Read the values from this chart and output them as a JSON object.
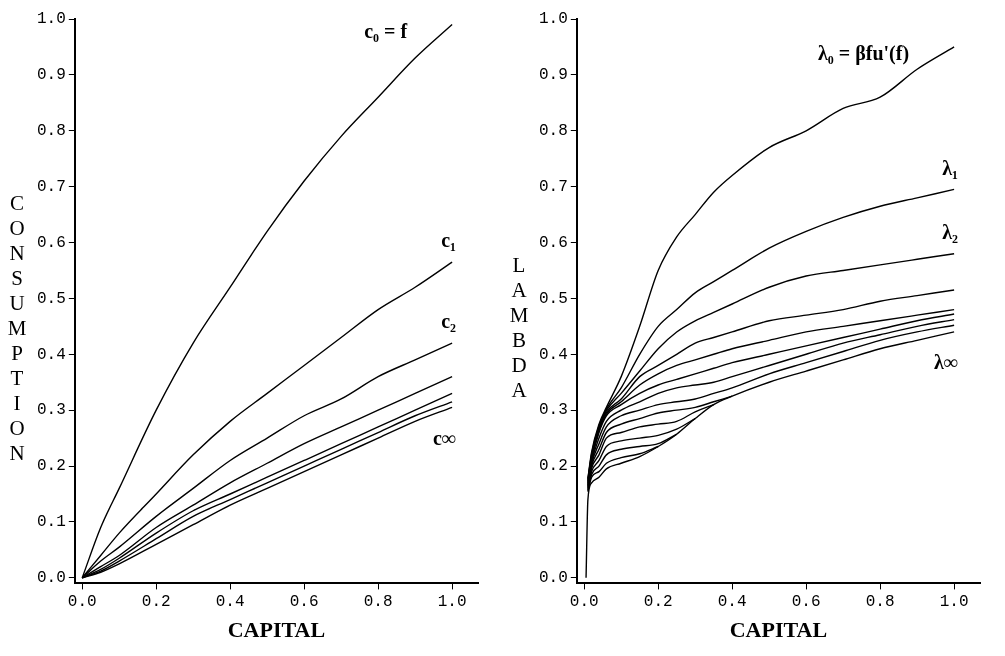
{
  "chart_data": [
    {
      "type": "line",
      "xlabel": "CAPITAL",
      "ylabel": "CONSUMPTION",
      "xlim": [
        -0.02,
        1.07
      ],
      "ylim": [
        -0.01,
        1.0
      ],
      "xticks": [
        {
          "value": 0,
          "label": "0.0"
        },
        {
          "value": 0.2,
          "label": "0.2"
        },
        {
          "value": 0.4,
          "label": "0.4"
        },
        {
          "value": 0.6,
          "label": "0.6"
        },
        {
          "value": 0.8,
          "label": "0.8"
        },
        {
          "value": 1.0,
          "label": "1.0"
        }
      ],
      "yticks": [
        {
          "value": 0,
          "label": "0.0"
        },
        {
          "value": 0.1,
          "label": "0.1"
        },
        {
          "value": 0.2,
          "label": "0.2"
        },
        {
          "value": 0.3,
          "label": "0.3"
        },
        {
          "value": 0.4,
          "label": "0.4"
        },
        {
          "value": 0.5,
          "label": "0.5"
        },
        {
          "value": 0.6,
          "label": "0.6"
        },
        {
          "value": 0.7,
          "label": "0.7"
        },
        {
          "value": 0.8,
          "label": "0.8"
        },
        {
          "value": 0.9,
          "label": "0.9"
        },
        {
          "value": 1.0,
          "label": "1.0"
        }
      ],
      "x": [
        0,
        0.05,
        0.1,
        0.2,
        0.3,
        0.4,
        0.5,
        0.6,
        0.7,
        0.8,
        0.9,
        1.0
      ],
      "series": [
        {
          "name": "c₀ = f",
          "color": "#000000",
          "values": [
            0,
            0.09,
            0.16,
            0.3,
            0.42,
            0.52,
            0.62,
            0.71,
            0.79,
            0.86,
            0.93,
            0.99
          ]
        },
        {
          "name": "c₁",
          "color": "#000000",
          "values": [
            0,
            0.04,
            0.08,
            0.15,
            0.22,
            0.28,
            0.33,
            0.38,
            0.43,
            0.48,
            0.52,
            0.565
          ]
        },
        {
          "name": "c₂",
          "color": "#000000",
          "values": [
            0,
            0.03,
            0.055,
            0.11,
            0.16,
            0.21,
            0.25,
            0.29,
            0.32,
            0.36,
            0.39,
            0.42
          ]
        },
        {
          "color": "#000000",
          "values": [
            0,
            0.02,
            0.04,
            0.09,
            0.13,
            0.17,
            0.205,
            0.24,
            0.27,
            0.3,
            0.33,
            0.36
          ]
        },
        {
          "color": "#000000",
          "values": [
            0,
            0.015,
            0.035,
            0.08,
            0.12,
            0.15,
            0.18,
            0.21,
            0.24,
            0.27,
            0.3,
            0.33
          ]
        },
        {
          "color": "#000000",
          "values": [
            0,
            0.012,
            0.03,
            0.07,
            0.11,
            0.14,
            0.17,
            0.2,
            0.23,
            0.26,
            0.29,
            0.315
          ]
        },
        {
          "name": "c∞",
          "color": "#000000",
          "values": [
            0,
            0.01,
            0.025,
            0.06,
            0.095,
            0.13,
            0.16,
            0.19,
            0.22,
            0.25,
            0.28,
            0.305
          ]
        }
      ]
    },
    {
      "type": "line",
      "xlabel": "CAPITAL",
      "ylabel": "LAMBDA",
      "xlim": [
        -0.02,
        1.07
      ],
      "ylim": [
        -0.01,
        1.0
      ],
      "xticks": [
        {
          "value": 0,
          "label": "0.0"
        },
        {
          "value": 0.2,
          "label": "0.2"
        },
        {
          "value": 0.4,
          "label": "0.4"
        },
        {
          "value": 0.6,
          "label": "0.6"
        },
        {
          "value": 0.8,
          "label": "0.8"
        },
        {
          "value": 1.0,
          "label": "1.0"
        }
      ],
      "yticks": [
        {
          "value": 0,
          "label": "0.0"
        },
        {
          "value": 0.1,
          "label": "0.1"
        },
        {
          "value": 0.2,
          "label": "0.2"
        },
        {
          "value": 0.3,
          "label": "0.3"
        },
        {
          "value": 0.4,
          "label": "0.4"
        },
        {
          "value": 0.5,
          "label": "0.5"
        },
        {
          "value": 0.6,
          "label": "0.6"
        },
        {
          "value": 0.7,
          "label": "0.7"
        },
        {
          "value": 0.8,
          "label": "0.8"
        },
        {
          "value": 0.9,
          "label": "0.9"
        },
        {
          "value": 1.0,
          "label": "1.0"
        }
      ],
      "x": [
        0.005,
        0.01,
        0.02,
        0.04,
        0.06,
        0.1,
        0.15,
        0.2,
        0.25,
        0.3,
        0.35,
        0.4,
        0.5,
        0.6,
        0.7,
        0.8,
        0.9,
        1.0
      ],
      "series": [
        {
          "name": "λ₀ = βfu'(f)",
          "color": "#000000",
          "values": [
            null,
            0.178,
            0.225,
            0.275,
            0.305,
            0.36,
            0.45,
            0.55,
            0.61,
            0.65,
            0.69,
            0.72,
            0.77,
            0.8,
            0.84,
            0.86,
            0.91,
            0.95
          ]
        },
        {
          "name": "λ₁",
          "color": "#000000",
          "values": [
            null,
            0.176,
            0.222,
            0.272,
            0.302,
            0.34,
            0.4,
            0.45,
            0.48,
            0.51,
            0.53,
            0.55,
            0.59,
            0.62,
            0.645,
            0.665,
            0.68,
            0.695
          ]
        },
        {
          "name": "λ₂",
          "color": "#000000",
          "values": [
            null,
            0.174,
            0.219,
            0.269,
            0.299,
            0.33,
            0.37,
            0.41,
            0.44,
            0.46,
            0.475,
            0.49,
            0.52,
            0.54,
            0.55,
            0.56,
            0.57,
            0.58
          ]
        },
        {
          "color": "#000000",
          "values": [
            null,
            0.172,
            0.216,
            0.266,
            0.296,
            0.32,
            0.36,
            0.38,
            0.4,
            0.42,
            0.43,
            0.44,
            0.46,
            0.47,
            0.48,
            0.495,
            0.505,
            0.515
          ]
        },
        {
          "color": "#000000",
          "values": [
            null,
            0.17,
            0.213,
            0.263,
            0.293,
            0.315,
            0.345,
            0.365,
            0.38,
            0.39,
            0.4,
            0.41,
            0.425,
            0.44,
            0.45,
            0.46,
            0.47,
            0.48
          ]
        },
        {
          "color": "#000000",
          "values": [
            null,
            0.168,
            0.21,
            0.26,
            0.29,
            0.31,
            0.33,
            0.345,
            0.355,
            0.365,
            0.375,
            0.385,
            0.4,
            0.415,
            0.43,
            0.445,
            0.46,
            0.472
          ]
        },
        {
          "color": "#000000",
          "values": [
            null,
            0.166,
            0.207,
            0.25,
            0.28,
            0.3,
            0.315,
            0.33,
            0.34,
            0.345,
            0.35,
            0.36,
            0.38,
            0.4,
            0.42,
            0.435,
            0.45,
            0.462
          ]
        },
        {
          "color": "#000000",
          "values": [
            null,
            0.164,
            0.204,
            0.24,
            0.27,
            0.29,
            0.3,
            0.31,
            0.315,
            0.32,
            0.33,
            0.34,
            0.365,
            0.385,
            0.405,
            0.425,
            0.44,
            0.452
          ]
        },
        {
          "color": "#000000",
          "values": [
            null,
            0.162,
            0.2,
            0.23,
            0.26,
            0.275,
            0.285,
            0.295,
            0.3,
            0.305,
            0.315,
            0.325,
            null,
            null,
            null,
            null,
            null,
            null
          ]
        },
        {
          "color": "#000000",
          "values": [
            null,
            0.16,
            0.196,
            0.22,
            0.25,
            0.26,
            0.27,
            0.275,
            0.28,
            0.297,
            0.31,
            null,
            null,
            null,
            null,
            null,
            null,
            null
          ]
        },
        {
          "color": "#000000",
          "values": [
            null,
            0.158,
            0.19,
            0.21,
            0.235,
            0.245,
            0.25,
            0.255,
            0.266,
            0.285,
            null,
            null,
            null,
            null,
            null,
            null,
            null,
            null
          ]
        },
        {
          "color": "#000000",
          "values": [
            null,
            0.156,
            0.185,
            0.2,
            0.22,
            0.23,
            0.235,
            0.24,
            0.257,
            null,
            null,
            null,
            null,
            null,
            null,
            null,
            null,
            null
          ]
        },
        {
          "color": "#000000",
          "values": [
            null,
            0.154,
            0.18,
            0.19,
            0.205,
            0.215,
            0.222,
            0.235,
            null,
            null,
            null,
            null,
            null,
            null,
            null,
            null,
            null,
            null
          ]
        },
        {
          "name": "λ∞",
          "color": "#000000",
          "values": [
            0,
            0.14,
            0.17,
            0.18,
            0.195,
            0.205,
            0.217,
            0.235,
            0.257,
            0.285,
            0.31,
            0.325,
            0.35,
            0.37,
            0.39,
            0.41,
            0.425,
            0.44
          ]
        }
      ]
    }
  ]
}
